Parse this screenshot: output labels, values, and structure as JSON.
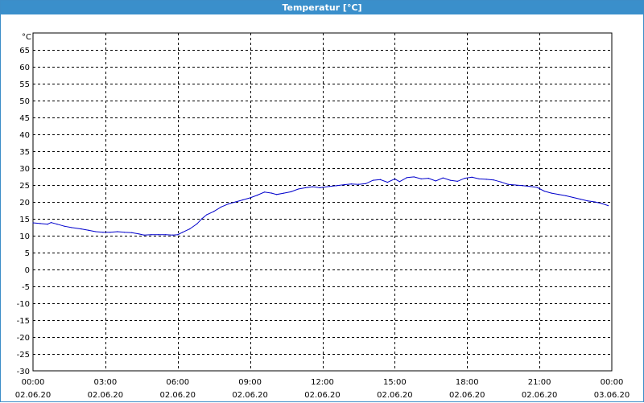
{
  "window": {
    "title": "Temperatur [°C]"
  },
  "chart_data": {
    "type": "line",
    "title": "Temperatur [°C]",
    "ylabel": "°C",
    "xlabel": "",
    "ylim": [
      -30,
      70
    ],
    "yticks": [
      65,
      60,
      55,
      50,
      45,
      40,
      35,
      30,
      25,
      20,
      15,
      10,
      5,
      0,
      -5,
      -10,
      -15,
      -20,
      -25,
      -30
    ],
    "xlim": [
      0,
      24
    ],
    "xticks": [
      {
        "x": 0,
        "time": "00:00",
        "date": "02.06.20"
      },
      {
        "x": 3,
        "time": "03:00",
        "date": "02.06.20"
      },
      {
        "x": 6,
        "time": "06:00",
        "date": "02.06.20"
      },
      {
        "x": 9,
        "time": "09:00",
        "date": "02.06.20"
      },
      {
        "x": 12,
        "time": "12:00",
        "date": "02.06.20"
      },
      {
        "x": 15,
        "time": "15:00",
        "date": "02.06.20"
      },
      {
        "x": 18,
        "time": "18:00",
        "date": "02.06.20"
      },
      {
        "x": 21,
        "time": "21:00",
        "date": "02.06.20"
      },
      {
        "x": 24,
        "time": "00:00",
        "date": "03.06.20"
      }
    ],
    "grid": true,
    "line_color": "#0000cc",
    "series": [
      {
        "x": [
          0,
          0.3,
          0.6,
          0.75,
          1.0,
          1.3,
          1.6,
          2.0,
          2.3,
          2.6,
          2.9,
          3.2,
          3.5,
          3.8,
          4.1,
          4.4,
          4.6,
          4.9,
          5.2,
          5.5,
          5.8,
          6.0,
          6.2,
          6.5,
          6.8,
          7.0,
          7.2,
          7.5,
          7.8,
          8.1,
          8.4,
          8.7,
          9.0,
          9.3,
          9.6,
          9.9,
          10.1,
          10.4,
          10.7,
          11.0,
          11.3,
          11.6,
          11.9,
          12.0,
          12.3,
          12.6,
          12.9,
          13.2,
          13.5,
          13.8,
          14.1,
          14.4,
          14.7,
          15.0,
          15.2,
          15.5,
          15.8,
          16.1,
          16.4,
          16.7,
          17.0,
          17.3,
          17.6,
          17.9,
          18.2,
          18.5,
          18.8,
          19.1,
          19.4,
          19.7,
          20.0,
          20.3,
          20.6,
          20.9,
          21.2,
          21.5,
          21.8,
          22.1,
          22.4,
          22.7,
          23.0,
          23.3,
          23.6,
          23.85
        ],
        "values": [
          13.8,
          13.6,
          13.4,
          13.9,
          13.4,
          12.8,
          12.4,
          12.0,
          11.6,
          11.2,
          11.0,
          11.0,
          11.2,
          11.0,
          10.9,
          10.5,
          10.2,
          10.3,
          10.3,
          10.3,
          10.2,
          10.3,
          11.0,
          12.0,
          13.5,
          15.0,
          16.2,
          17.2,
          18.5,
          19.4,
          20.0,
          20.6,
          21.2,
          22.0,
          22.9,
          22.6,
          22.2,
          22.6,
          23.0,
          23.8,
          24.2,
          24.5,
          24.2,
          24.3,
          24.6,
          24.8,
          25.1,
          25.3,
          25.2,
          25.4,
          26.4,
          26.6,
          25.8,
          26.8,
          26.0,
          27.2,
          27.4,
          26.8,
          27.0,
          26.2,
          27.1,
          26.4,
          26.1,
          27.0,
          27.3,
          26.8,
          26.7,
          26.5,
          25.9,
          25.2,
          25.0,
          24.8,
          24.6,
          24.3,
          23.2,
          22.6,
          22.2,
          21.8,
          21.3,
          20.8,
          20.3,
          20.0,
          19.5,
          18.9
        ]
      }
    ]
  }
}
